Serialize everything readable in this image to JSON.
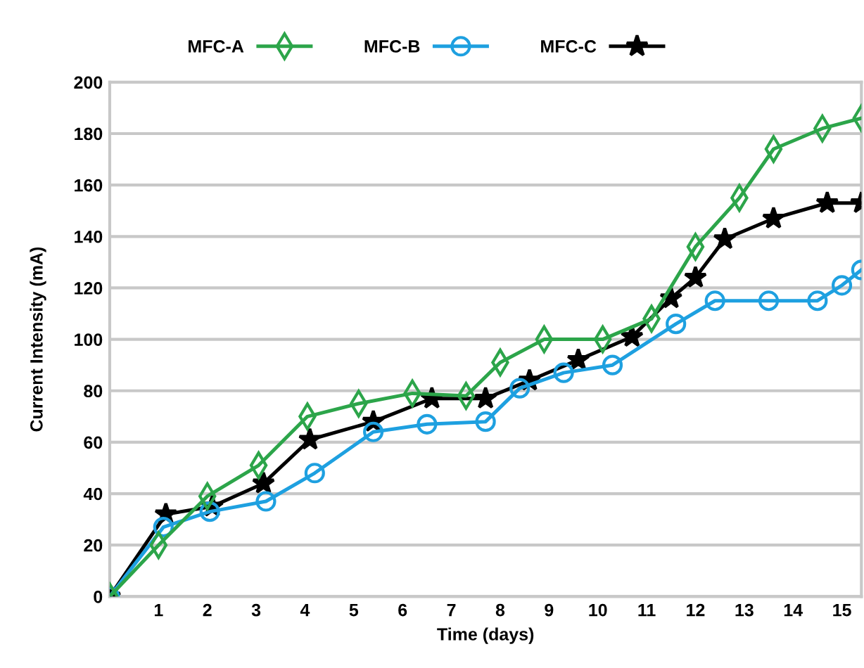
{
  "chart_data": {
    "type": "line",
    "xlabel": "Time (days)",
    "ylabel": "Current Intensity (mA)",
    "xlim": [
      0,
      15.4
    ],
    "xticks": [
      1,
      2,
      3,
      4,
      5,
      6,
      7,
      8,
      9,
      10,
      11,
      12,
      13,
      14,
      15
    ],
    "ylim": [
      0,
      200
    ],
    "yticks": [
      0,
      20,
      40,
      60,
      80,
      100,
      120,
      140,
      160,
      180,
      200
    ],
    "grid": "y",
    "legend": "top",
    "line_style": "solid",
    "series": [
      {
        "name": "MFC-A",
        "color": "#2ca54a",
        "marker": "diamond",
        "x": [
          0,
          1,
          2,
          3.05,
          4.05,
          5.1,
          6.2,
          7.3,
          8.0,
          8.9,
          10.1,
          11.1,
          12.0,
          12.9,
          13.6,
          14.6,
          15.4
        ],
        "values": [
          0,
          20,
          39,
          51,
          70,
          75,
          79,
          78,
          91,
          100,
          100,
          108,
          136,
          155,
          174,
          182,
          186
        ]
      },
      {
        "name": "MFC-B",
        "color": "#1ea0e0",
        "marker": "circle",
        "x": [
          0,
          1.1,
          2.05,
          3.2,
          4.2,
          5.4,
          6.5,
          7.7,
          8.4,
          9.3,
          10.3,
          11.6,
          12.4,
          13.5,
          14.5,
          15.0,
          15.4
        ],
        "values": [
          0,
          27,
          33,
          37,
          48,
          64,
          67,
          68,
          81,
          87,
          90,
          106,
          115,
          115,
          115,
          121,
          127
        ]
      },
      {
        "name": "MFC-C",
        "color": "#000000",
        "marker": "star",
        "x": [
          0,
          1.15,
          2.1,
          3.15,
          4.1,
          5.4,
          6.6,
          7.7,
          8.6,
          9.6,
          10.7,
          11.5,
          12.0,
          12.6,
          13.6,
          14.7,
          15.4
        ],
        "values": [
          0,
          32,
          35,
          44,
          61,
          68,
          77,
          77,
          84,
          92,
          101,
          116,
          124,
          139,
          147,
          153,
          153
        ]
      }
    ]
  }
}
